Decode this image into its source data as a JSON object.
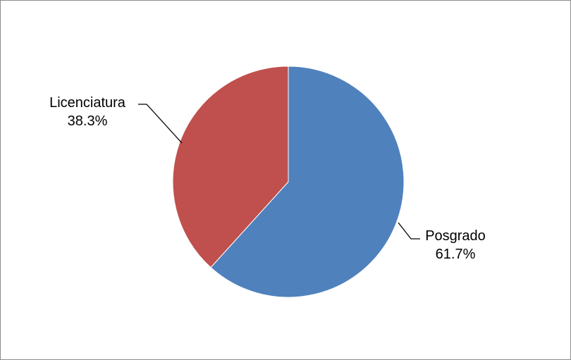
{
  "chart_data": {
    "type": "pie",
    "title": "",
    "legend": "none",
    "slices": [
      {
        "label": "Posgrado",
        "percent_label": "61.7%",
        "value": 61.7,
        "color": "#4F81BD"
      },
      {
        "label": "Licenciatura",
        "percent_label": "38.3%",
        "value": 38.3,
        "color": "#C0504D"
      }
    ]
  }
}
